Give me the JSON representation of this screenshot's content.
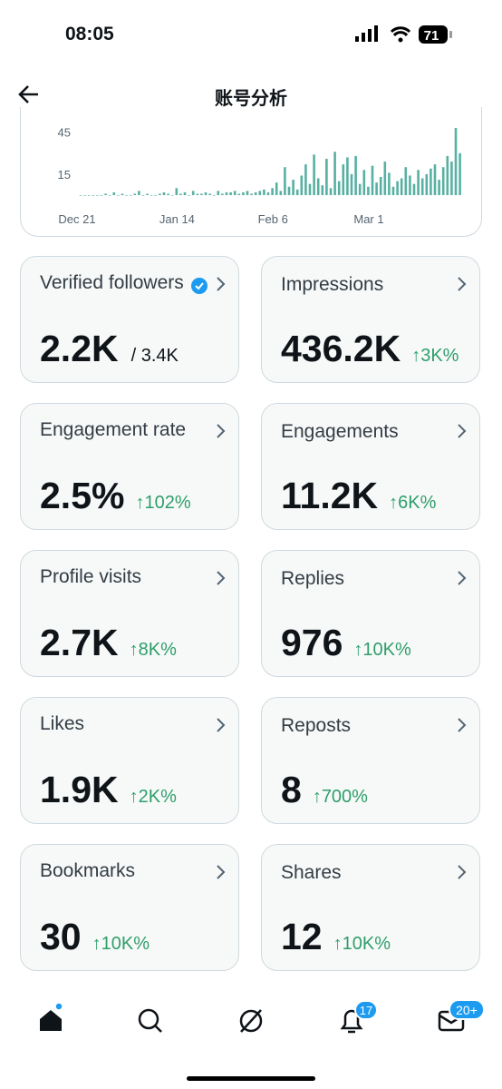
{
  "status": {
    "time": "08:05",
    "battery": "71"
  },
  "header": {
    "title": "账号分析"
  },
  "chart_data": {
    "type": "bar",
    "color": "#58b0a2",
    "categories": [
      "Dec 21",
      null,
      null,
      null,
      null,
      null,
      null,
      null,
      null,
      null,
      null,
      null,
      null,
      null,
      null,
      null,
      null,
      null,
      null,
      null,
      null,
      null,
      null,
      null,
      "Jan 14",
      null,
      null,
      null,
      null,
      null,
      null,
      null,
      null,
      null,
      null,
      null,
      null,
      null,
      null,
      null,
      null,
      null,
      null,
      null,
      null,
      null,
      null,
      "Feb 6",
      null,
      null,
      null,
      null,
      null,
      null,
      null,
      null,
      null,
      null,
      null,
      null,
      null,
      null,
      null,
      null,
      null,
      null,
      null,
      null,
      null,
      null,
      "Mar 1",
      null,
      null,
      null,
      null,
      null,
      null,
      null,
      null,
      null,
      null,
      null,
      null,
      null,
      null,
      null,
      null,
      null,
      null,
      null,
      null,
      null
    ],
    "values": [
      0,
      0,
      0,
      0,
      0,
      0,
      1,
      0,
      2,
      0,
      1,
      0,
      0,
      1,
      3,
      0,
      1,
      0,
      0,
      1,
      2,
      1,
      0,
      5,
      1,
      2,
      0,
      3,
      1,
      1,
      2,
      1,
      0,
      3,
      1,
      2,
      2,
      3,
      1,
      2,
      3,
      1,
      2,
      3,
      4,
      2,
      5,
      9,
      3,
      20,
      6,
      11,
      4,
      14,
      22,
      8,
      29,
      12,
      7,
      26,
      5,
      31,
      10,
      22,
      27,
      15,
      28,
      8,
      18,
      6,
      21,
      9,
      13,
      24,
      16,
      6,
      10,
      12,
      20,
      14,
      8,
      18,
      12,
      15,
      19,
      22,
      11,
      20,
      28,
      24,
      48,
      30
    ],
    "ylim": [
      0,
      50
    ],
    "yticks": [
      15,
      45
    ]
  },
  "cards": [
    {
      "label": "Verified followers",
      "value": "2.2K",
      "extra": "/ 3.4K"
    },
    {
      "label": "Impressions",
      "value": "436.2K",
      "extra": "↑3K%"
    },
    {
      "label": "Engagement rate",
      "value": "2.5%",
      "extra": "↑102%"
    },
    {
      "label": "Engagements",
      "value": "11.2K",
      "extra": "↑6K%"
    },
    {
      "label": "Profile visits",
      "value": "2.7K",
      "extra": "↑8K%"
    },
    {
      "label": "Replies",
      "value": "976",
      "extra": "↑10K%"
    },
    {
      "label": "Likes",
      "value": "1.9K",
      "extra": "↑2K%"
    },
    {
      "label": "Reposts",
      "value": "8",
      "extra": "↑700%"
    },
    {
      "label": "Bookmarks",
      "value": "30",
      "extra": "↑10K%"
    },
    {
      "label": "Shares",
      "value": "12",
      "extra": "↑10K%"
    }
  ],
  "nav": {
    "notifications_badge": "17",
    "messages_badge": "20+"
  }
}
